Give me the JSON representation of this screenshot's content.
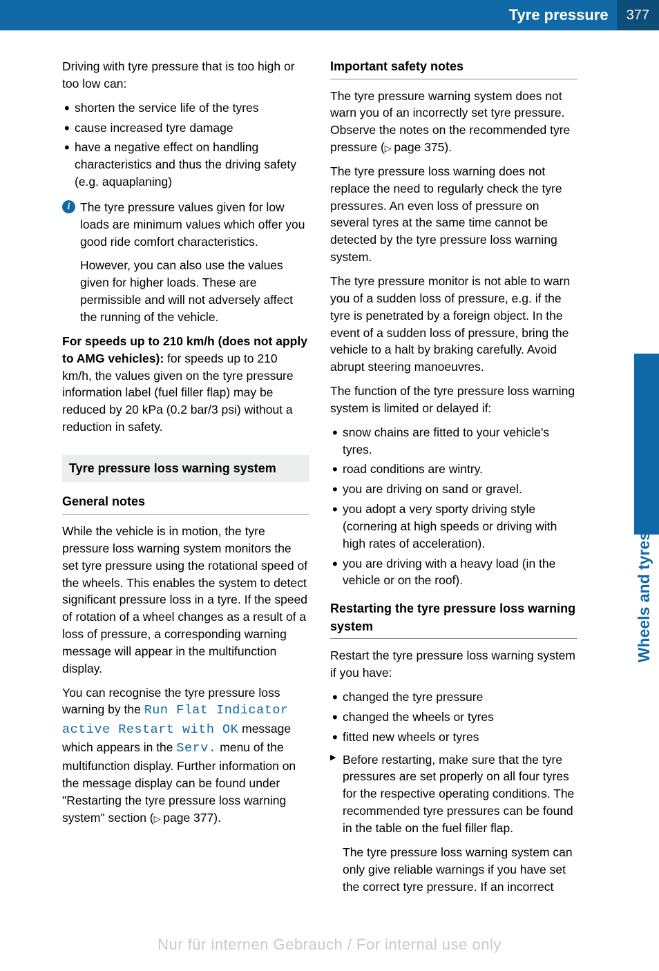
{
  "header": {
    "title": "Tyre pressure",
    "page": "377"
  },
  "sideTab": {
    "label": "Wheels and tyres",
    "bg": "#1069a6"
  },
  "col1": {
    "intro": "Driving with tyre pressure that is too high or too low can:",
    "bullets1": [
      "shorten the service life of the tyres",
      "cause increased tyre damage",
      "have a negative effect on handling characteristics and thus the driving safety (e.g. aquaplaning)"
    ],
    "info": {
      "p1": "The tyre pressure values given for low loads are minimum values which offer you good ride comfort characteristics.",
      "p2": "However, you can also use the values given for higher loads. These are permissible and will not adversely affect the running of the vehicle."
    },
    "speeds_bold": "For speeds up to 210 km/h (does not apply to AMG vehicles):",
    "speeds_rest": " for speeds up to 210 km/h, the values given on the tyre pressure information label (fuel filler flap) may be reduced by 20 kPa (0.2 bar/3 psi) without a reduction in safety.",
    "sectionBox": "Tyre pressure loss warning system",
    "subhead1": "General notes",
    "general_p1": "While the vehicle is in motion, the tyre pressure loss warning system monitors the set tyre pressure using the rotational speed of the wheels. This enables the system to detect significant pressure loss in a tyre. If the speed of rotation of a wheel changes as a result of a loss of pressure, a corresponding warning message will appear in the multifunction display.",
    "recog_pre": "You can recognise the tyre pressure loss warning by the ",
    "recog_disp1": "Run Flat Indicator active Restart with OK",
    "recog_mid": " message which appears in the ",
    "recog_disp2": "Serv.",
    "recog_post": " menu of the multifunction display. Further information on the message display can be found under \"Restarting the tyre pressure loss warning system\" section (",
    "recog_ref": "page 377",
    "recog_end": ")."
  },
  "col2": {
    "subhead1": "Important safety notes",
    "safety_p1_pre": "The tyre pressure warning system does not warn you of an incorrectly set tyre pressure. Observe the notes on the recommended tyre pressure (",
    "safety_p1_ref": "page 375",
    "safety_p1_end": ").",
    "safety_p2": "The tyre pressure loss warning does not replace the need to regularly check the tyre pressures. An even loss of pressure on several tyres at the same time cannot be detected by the tyre pressure loss warning system.",
    "safety_p3": "The tyre pressure monitor is not able to warn you of a sudden loss of pressure, e.g. if the tyre is penetrated by a foreign object. In the event of a sudden loss of pressure, bring the vehicle to a halt by braking carefully. Avoid abrupt steering manoeuvres.",
    "safety_p4": "The function of the tyre pressure loss warning system is limited or delayed if:",
    "bullets2": [
      "snow chains are fitted to your vehicle's tyres.",
      "road conditions are wintry.",
      "you are driving on sand or gravel.",
      "you adopt a very sporty driving style (cornering at high speeds or driving with high rates of acceleration).",
      "you are driving with a heavy load (in the vehicle or on the roof)."
    ],
    "subhead2": "Restarting the tyre pressure loss warning system",
    "restart_p1": "Restart the tyre pressure loss warning system if you have:",
    "bullets3": [
      "changed the tyre pressure",
      "changed the wheels or tyres",
      "fitted new wheels or tyres"
    ],
    "action": {
      "p1": "Before restarting, make sure that the tyre pressures are set properly on all four tyres for the respective operating conditions. The recommended tyre pressures can be found in the table on the fuel filler flap.",
      "p2": "The tyre pressure loss warning system can only give reliable warnings if you have set the correct tyre pressure. If an incorrect"
    }
  },
  "watermark": "Nur für internen Gebrauch / For internal use only"
}
